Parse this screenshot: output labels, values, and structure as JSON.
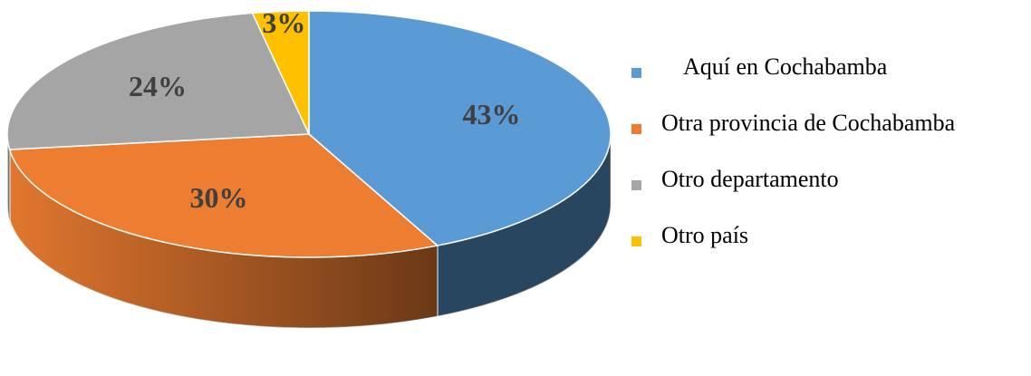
{
  "chart_data": {
    "type": "pie3d",
    "categories": [
      "Aquí en Cochabamba",
      "Otra provincia de Cochabamba",
      "Otro departamento",
      "Otro país"
    ],
    "values": [
      43,
      30,
      24,
      3
    ],
    "value_labels": [
      "43%",
      "30%",
      "24%",
      "3%"
    ],
    "colors": [
      "#5b9bd5",
      "#ed7d31",
      "#a5a5a5",
      "#ffc000"
    ],
    "legend": "right"
  }
}
